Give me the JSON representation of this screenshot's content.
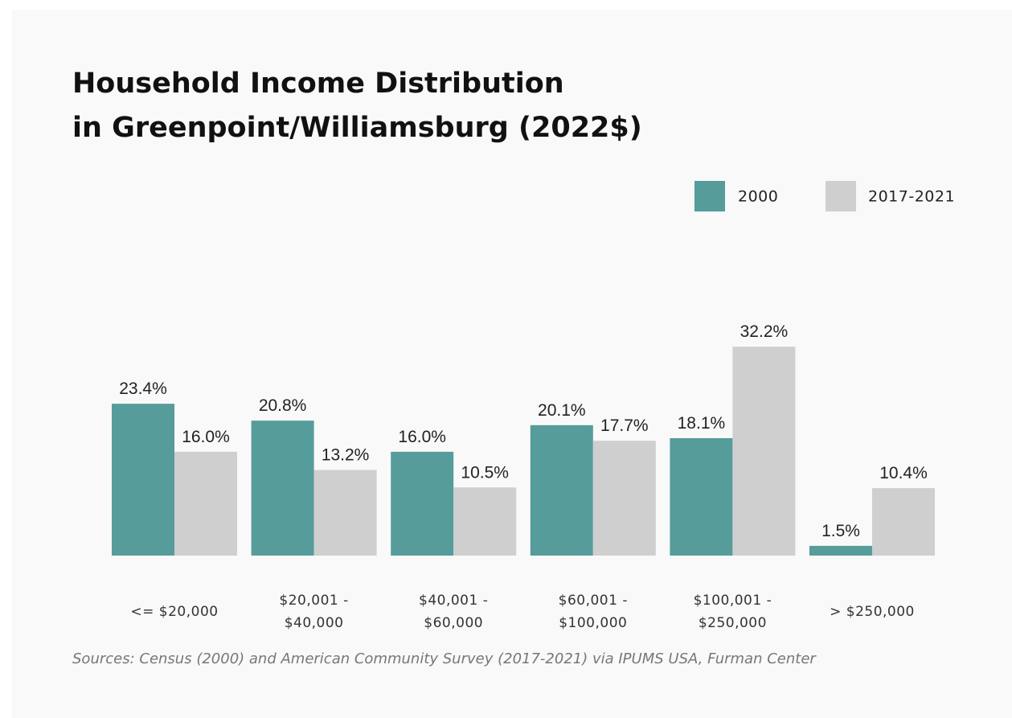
{
  "chart_data": {
    "type": "bar",
    "title": [
      "Household Income Distribution",
      "in Greenpoint/Williamsburg (2022$)"
    ],
    "categories": [
      "<= $20,000",
      "$20,001 - $40,000",
      "$40,001 - $60,000",
      "$60,001 - $100,000",
      "$100,001 - $250,000",
      "> $250,000"
    ],
    "series": [
      {
        "name": "2000",
        "color": "#559c9b",
        "values": [
          23.4,
          20.8,
          16.0,
          20.1,
          18.1,
          1.5
        ],
        "value_labels": [
          "23.4%",
          "20.8%",
          "16.0%",
          "20.1%",
          "18.1%",
          "1.5%"
        ]
      },
      {
        "name": "2017-2021",
        "color": "#cfcfcf",
        "values": [
          16.0,
          13.2,
          10.5,
          17.7,
          32.2,
          10.4
        ],
        "value_labels": [
          "16.0%",
          "13.2%",
          "10.5%",
          "17.7%",
          "32.2%",
          "10.4%"
        ]
      }
    ],
    "legend": "top-right",
    "source": "Sources: Census (2000) and American Community Survey (2017-2021) via IPUMS USA, Furman Center"
  }
}
